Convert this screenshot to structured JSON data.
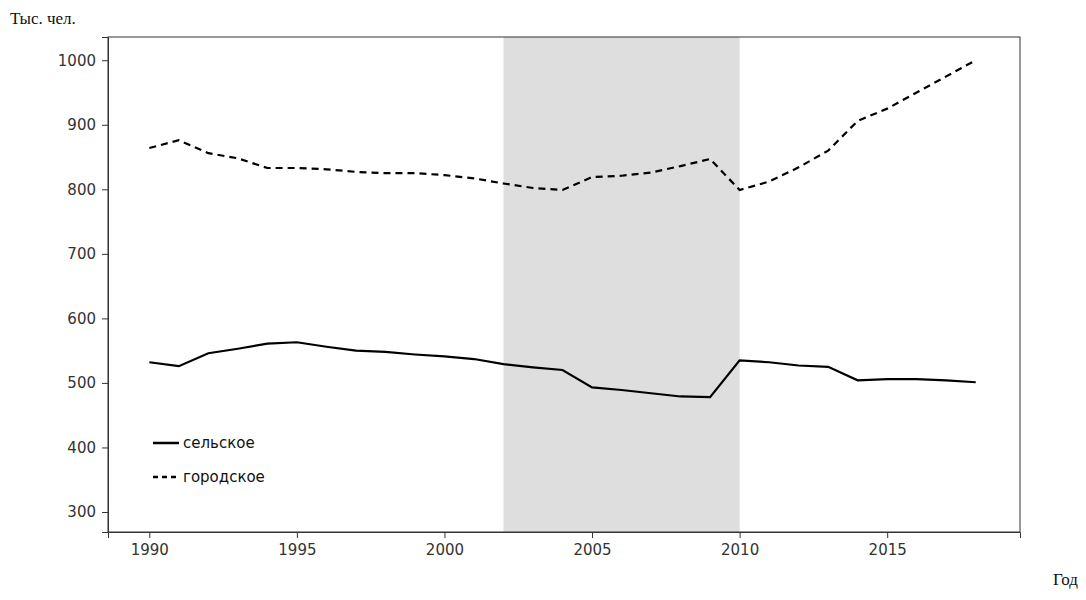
{
  "chart_data": {
    "type": "line",
    "y_label": "Тыс. чел.",
    "x_label": "Год",
    "x": [
      1990,
      1991,
      1992,
      1993,
      1994,
      1995,
      1996,
      1997,
      1998,
      1999,
      2000,
      2001,
      2002,
      2003,
      2004,
      2005,
      2006,
      2007,
      2008,
      2009,
      2010,
      2011,
      2012,
      2013,
      2014,
      2015,
      2016,
      2017,
      2018
    ],
    "series": [
      {
        "name": "сельское",
        "color": "#000000",
        "line_style": "solid",
        "values": [
          532,
          526,
          546,
          553,
          561,
          563,
          556,
          550,
          548,
          544,
          541,
          537,
          529,
          524,
          520,
          493,
          489,
          484,
          479,
          478,
          535,
          532,
          527,
          525,
          504,
          506,
          506,
          504,
          501
        ]
      },
      {
        "name": "городское",
        "color": "#000000",
        "line_style": "dashed",
        "values": [
          864,
          876,
          856,
          848,
          833,
          833,
          831,
          827,
          825,
          825,
          822,
          817,
          809,
          802,
          799,
          819,
          821,
          826,
          836,
          847,
          799,
          812,
          834,
          860,
          906,
          925,
          950,
          975,
          1000
        ]
      }
    ],
    "shaded_x": [
      2002,
      2010
    ],
    "xlim": [
      1988.6,
      2019.5
    ],
    "ylim": [
      269,
      1036
    ],
    "xticks": [
      1990,
      1995,
      2000,
      2005,
      2010,
      2015
    ],
    "yticks": [
      300,
      400,
      500,
      600,
      700,
      800,
      900,
      1000
    ],
    "grid": false,
    "legend": "lower left"
  }
}
